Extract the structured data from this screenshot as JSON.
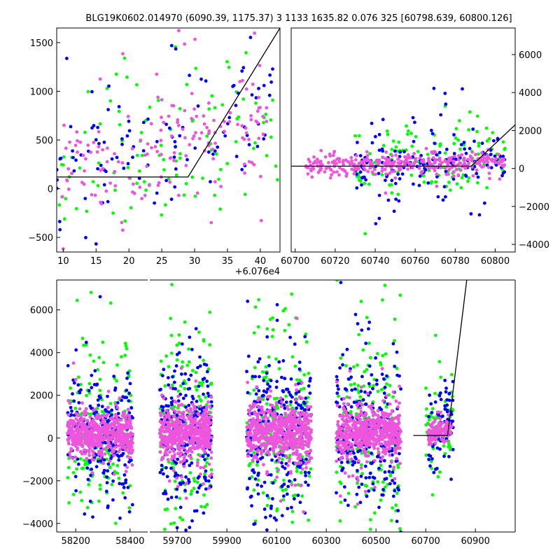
{
  "title": "BLG19K0602.014970 (6090.39, 1175.37)    3 1133 1635.82 0.076 325 [60798.639, 60800.126]",
  "colors": {
    "green": "#00ff00",
    "blue": "#0000ff",
    "pink": "#ee55dd",
    "model": "#000000"
  },
  "chart_data": [
    {
      "name": "zoom-panel",
      "type": "scatter",
      "xlim": [
        9,
        43
      ],
      "ylim": [
        -650,
        1650
      ],
      "xticks": [
        10,
        15,
        20,
        25,
        30,
        35,
        40
      ],
      "xtick_labels": [
        "10",
        "15",
        "20",
        "25",
        "30",
        "35",
        "40"
      ],
      "xoffset_label": "+6.076e4",
      "yticks": [
        -500,
        0,
        500,
        1000,
        1500
      ],
      "ytick_labels": [
        "−500",
        "0",
        "500",
        "1000",
        "1500"
      ],
      "model_line": {
        "x": [
          9,
          29,
          43
        ],
        "y": [
          120,
          120,
          1650
        ]
      },
      "clouds": [
        {
          "series": "green",
          "x": [
            9,
            43
          ],
          "y_center": [
            200,
            700
          ],
          "spread": 450,
          "n": 110,
          "seed": 11
        },
        {
          "series": "blue",
          "x": [
            9,
            42
          ],
          "y_center": [
            150,
            800
          ],
          "spread": 380,
          "n": 110,
          "seed": 12
        },
        {
          "series": "pink",
          "x": [
            9,
            41
          ],
          "y_center": [
            150,
            700
          ],
          "spread": 280,
          "n": 170,
          "seed": 13
        }
      ]
    },
    {
      "name": "season-panel",
      "type": "scatter",
      "xlim": [
        60698,
        60810
      ],
      "ylim": [
        -4400,
        7400
      ],
      "xticks": [
        60700,
        60720,
        60740,
        60760,
        60780,
        60800
      ],
      "xtick_labels": [
        "60700",
        "60720",
        "60740",
        "60760",
        "60780",
        "60800"
      ],
      "yticks": [
        -4000,
        -2000,
        0,
        2000,
        4000,
        6000
      ],
      "ytick_labels": [
        "−4000",
        "−2000",
        "0",
        "2000",
        "4000",
        "6000"
      ],
      "model_line": {
        "x": [
          60698,
          60788,
          60810
        ],
        "y": [
          120,
          120,
          2300
        ]
      },
      "clouds": [
        {
          "series": "green",
          "x": [
            60730,
            60805
          ],
          "y_center": [
            150,
            500
          ],
          "spread": 900,
          "n": 140,
          "seed": 21
        },
        {
          "series": "blue",
          "x": [
            60730,
            60805
          ],
          "y_center": [
            150,
            500
          ],
          "spread": 700,
          "n": 170,
          "seed": 22
        },
        {
          "series": "pink",
          "x": [
            60705,
            60805
          ],
          "y_center": [
            100,
            400
          ],
          "spread": 250,
          "n": 320,
          "seed": 23
        }
      ]
    },
    {
      "name": "full-lightcurve",
      "type": "scatter",
      "segments": [
        {
          "xlim": [
            58130,
            58465
          ],
          "xticks": [
            58200,
            58400
          ],
          "xtick_labels": [
            "58200",
            "58400"
          ],
          "clouds": [
            {
              "series": "green",
              "x": [
                58170,
                58410
              ],
              "y_center": [
                200,
                200
              ],
              "spread": 1900,
              "n": 180,
              "seed": 31
            },
            {
              "series": "blue",
              "x": [
                58170,
                58410
              ],
              "y_center": [
                200,
                200
              ],
              "spread": 1400,
              "n": 240,
              "seed": 32
            },
            {
              "series": "pink",
              "x": [
                58170,
                58410
              ],
              "y_center": [
                200,
                200
              ],
              "spread": 450,
              "n": 600,
              "seed": 33
            }
          ]
        },
        {
          "xlim": [
            59590,
            61060
          ],
          "xticks": [
            59700,
            59900,
            60100,
            60300,
            60500,
            60700,
            60900
          ],
          "xtick_labels": [
            "59700",
            "59900",
            "60100",
            "60300",
            "60500",
            "60700",
            "60900"
          ],
          "model_line": {
            "x": [
              60650,
              60788,
              60865
            ],
            "y": [
              120,
              120,
              7400
            ]
          },
          "clouds": [
            {
              "series": "green",
              "x": [
                59630,
                59840
              ],
              "y_center": [
                300,
                300
              ],
              "spread": 2300,
              "n": 170,
              "seed": 41
            },
            {
              "series": "blue",
              "x": [
                59630,
                59840
              ],
              "y_center": [
                300,
                300
              ],
              "spread": 1800,
              "n": 230,
              "seed": 42
            },
            {
              "series": "pink",
              "x": [
                59630,
                59840
              ],
              "y_center": [
                250,
                250
              ],
              "spread": 550,
              "n": 560,
              "seed": 43
            },
            {
              "series": "green",
              "x": [
                59980,
                60240
              ],
              "y_center": [
                300,
                300
              ],
              "spread": 2400,
              "n": 190,
              "seed": 44
            },
            {
              "series": "blue",
              "x": [
                59980,
                60240
              ],
              "y_center": [
                300,
                300
              ],
              "spread": 1900,
              "n": 260,
              "seed": 45
            },
            {
              "series": "pink",
              "x": [
                59980,
                60240
              ],
              "y_center": [
                300,
                300
              ],
              "spread": 600,
              "n": 620,
              "seed": 46
            },
            {
              "series": "green",
              "x": [
                60340,
                60600
              ],
              "y_center": [
                300,
                300
              ],
              "spread": 2100,
              "n": 170,
              "seed": 47
            },
            {
              "series": "blue",
              "x": [
                60340,
                60600
              ],
              "y_center": [
                300,
                300
              ],
              "spread": 1700,
              "n": 250,
              "seed": 48
            },
            {
              "series": "pink",
              "x": [
                60340,
                60600
              ],
              "y_center": [
                250,
                250
              ],
              "spread": 550,
              "n": 600,
              "seed": 49
            },
            {
              "series": "green",
              "x": [
                60700,
                60810
              ],
              "y_center": [
                400,
                600
              ],
              "spread": 1300,
              "n": 60,
              "seed": 50
            },
            {
              "series": "blue",
              "x": [
                60710,
                60810
              ],
              "y_center": [
                300,
                600
              ],
              "spread": 900,
              "n": 70,
              "seed": 51
            },
            {
              "series": "pink",
              "x": [
                60710,
                60805
              ],
              "y_center": [
                200,
                400
              ],
              "spread": 250,
              "n": 120,
              "seed": 52
            }
          ]
        }
      ],
      "ylim": [
        -4400,
        7400
      ],
      "yticks": [
        -4000,
        -2000,
        0,
        2000,
        4000,
        6000
      ],
      "ytick_labels": [
        "−4000",
        "−2000",
        "0",
        "2000",
        "4000",
        "6000"
      ]
    }
  ]
}
